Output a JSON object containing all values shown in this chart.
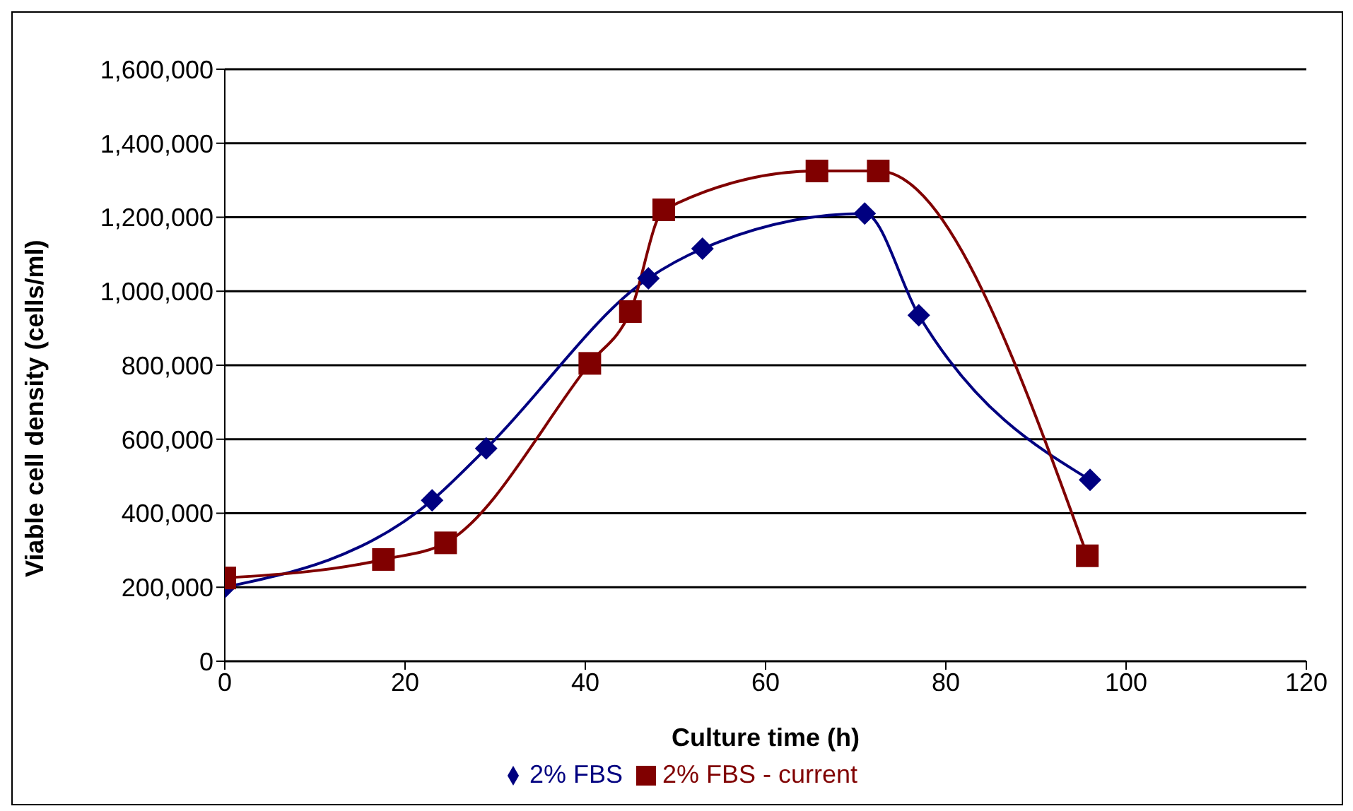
{
  "chart_data": {
    "type": "line",
    "xlabel": "Culture time (h)",
    "ylabel": "Viable cell density (cells/ml)",
    "xlim": [
      0,
      120
    ],
    "xticks": [
      0,
      20,
      40,
      60,
      80,
      100,
      120
    ],
    "ylim": [
      0,
      1600000
    ],
    "yticks": [
      0,
      {
        "value": 200000,
        "label": "200,000"
      },
      {
        "value": 400000,
        "label": "400,000"
      },
      {
        "value": 600000,
        "label": "600,000"
      },
      {
        "value": 800000,
        "label": "800,000"
      },
      {
        "value": 1000000,
        "label": "1,000,000"
      },
      {
        "value": 1200000,
        "label": "1,200,000"
      },
      {
        "value": 1400000,
        "label": "1,400,000"
      },
      {
        "value": 1600000,
        "label": "1,600,000"
      }
    ],
    "grid": "y",
    "legend": "bottom",
    "line_style": "solid",
    "series": [
      {
        "name": "2% FBS",
        "color": "#000080",
        "marker": "diamond",
        "x": [
          0,
          23,
          29,
          47,
          53,
          71,
          77,
          96
        ],
        "values": [
          200000,
          435000,
          575000,
          1035000,
          1115000,
          1210000,
          935000,
          490000
        ]
      },
      {
        "name": "2% FBS - current",
        "color": "#800000",
        "marker": "square",
        "x": [
          0,
          17.6,
          24.5,
          40.5,
          45,
          48.7,
          65.7,
          72.5,
          95.7
        ],
        "values": [
          225000,
          275000,
          320000,
          805000,
          945000,
          1220000,
          1325000,
          1325000,
          285000
        ]
      }
    ]
  }
}
